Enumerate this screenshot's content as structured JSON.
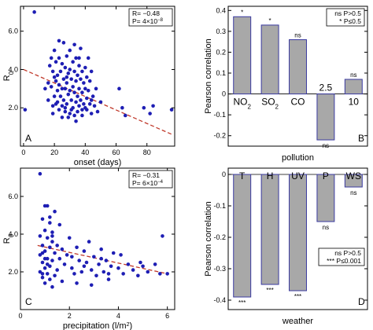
{
  "colors": {
    "point": "#1e1eb4",
    "trend": "#c0392b",
    "bar_fill": "#a8a8a8",
    "bar_stroke": "#3a3aa0"
  },
  "chart_data": [
    {
      "panel_label": "A",
      "type": "scatter",
      "xlabel": "onset (days)",
      "ylabel": "R0",
      "ylabel_main": "R",
      "ylabel_sub": "0",
      "xlim": [
        -2,
        98
      ],
      "ylim": [
        0,
        7.3
      ],
      "xticks": [
        "0",
        "20",
        "40",
        "60",
        "80"
      ],
      "xtick_values": [
        0,
        20,
        40,
        60,
        80
      ],
      "yticks": [
        "2.0",
        "4.0",
        "6.0"
      ],
      "ytick_values": [
        2,
        4,
        6
      ],
      "stats": {
        "r": "R= −0.48",
        "p_main": "P= 4×10",
        "p_exp": "−8"
      },
      "trend": {
        "x": [
          0,
          96
        ],
        "y": [
          4.0,
          0.62
        ]
      },
      "points": [
        [
          7,
          7.0
        ],
        [
          1,
          1.9
        ],
        [
          14,
          3.0
        ],
        [
          16,
          3.3
        ],
        [
          16,
          2.4
        ],
        [
          17,
          4.2
        ],
        [
          18,
          4.6
        ],
        [
          18,
          3.1
        ],
        [
          19,
          3.9
        ],
        [
          19,
          2.1
        ],
        [
          20,
          5.0
        ],
        [
          20,
          3.6
        ],
        [
          20,
          2.6
        ],
        [
          21,
          4.4
        ],
        [
          21,
          3.4
        ],
        [
          21,
          2.2
        ],
        [
          22,
          3.7
        ],
        [
          22,
          2.9
        ],
        [
          23,
          5.5
        ],
        [
          23,
          4.6
        ],
        [
          23,
          3.2
        ],
        [
          23,
          1.9
        ],
        [
          24,
          3.9
        ],
        [
          24,
          2.6
        ],
        [
          25,
          4.3
        ],
        [
          25,
          3.0
        ],
        [
          25,
          2.1
        ],
        [
          26,
          5.4
        ],
        [
          26,
          3.5
        ],
        [
          26,
          2.4
        ],
        [
          27,
          4.1
        ],
        [
          27,
          3.0
        ],
        [
          27,
          1.8
        ],
        [
          28,
          4.7
        ],
        [
          28,
          3.3
        ],
        [
          28,
          2.2
        ],
        [
          29,
          3.8
        ],
        [
          29,
          2.7
        ],
        [
          30,
          5.0
        ],
        [
          30,
          4.0
        ],
        [
          30,
          2.9
        ],
        [
          30,
          1.7
        ],
        [
          31,
          3.5
        ],
        [
          31,
          2.4
        ],
        [
          32,
          4.4
        ],
        [
          32,
          3.1
        ],
        [
          32,
          2.0
        ],
        [
          33,
          3.9
        ],
        [
          33,
          2.8
        ],
        [
          33,
          1.6
        ],
        [
          34,
          4.6
        ],
        [
          34,
          3.4
        ],
        [
          34,
          2.3
        ],
        [
          35,
          3.7
        ],
        [
          35,
          2.6
        ],
        [
          35,
          1.8
        ],
        [
          36,
          4.2
        ],
        [
          36,
          3.0
        ],
        [
          36,
          2.1
        ],
        [
          37,
          5.1
        ],
        [
          37,
          3.5
        ],
        [
          37,
          2.4
        ],
        [
          38,
          3.9
        ],
        [
          38,
          2.8
        ],
        [
          38,
          1.9
        ],
        [
          39,
          3.3
        ],
        [
          39,
          2.2
        ],
        [
          40,
          4.1
        ],
        [
          40,
          3.0
        ],
        [
          40,
          2.0
        ],
        [
          41,
          3.6
        ],
        [
          41,
          2.5
        ],
        [
          42,
          4.6
        ],
        [
          42,
          2.9
        ],
        [
          43,
          3.4
        ],
        [
          43,
          2.2
        ],
        [
          44,
          3.9
        ],
        [
          44,
          1.7
        ],
        [
          45,
          2.6
        ],
        [
          46,
          2.1
        ],
        [
          47,
          3.0
        ],
        [
          48,
          1.8
        ],
        [
          50,
          2.3
        ],
        [
          62,
          3.0
        ],
        [
          64,
          2.0
        ],
        [
          66,
          1.6
        ],
        [
          78,
          2.0
        ],
        [
          82,
          1.7
        ],
        [
          84,
          2.1
        ],
        [
          96,
          1.9
        ],
        [
          25,
          1.5
        ],
        [
          29,
          1.5
        ],
        [
          34,
          1.3
        ],
        [
          38,
          1.6
        ],
        [
          22,
          2.3
        ],
        [
          27,
          2.0
        ],
        [
          31,
          1.9
        ],
        [
          19,
          1.7
        ],
        [
          36,
          4.6
        ],
        [
          41,
          1.9
        ],
        [
          44,
          2.4
        ],
        [
          33,
          5.3
        ],
        [
          28,
          3.6
        ]
      ]
    },
    {
      "panel_label": "B",
      "type": "bar",
      "xlabel": "pollution",
      "ylabel": "Pearson correlation",
      "ylim": [
        -0.25,
        0.42
      ],
      "yticks": [
        "-0.2",
        "-0.1",
        "0",
        "0.1",
        "0.2",
        "0.3",
        "0.4"
      ],
      "ytick_values": [
        -0.2,
        -0.1,
        0,
        0.1,
        0.2,
        0.3,
        0.4
      ],
      "categories": [
        "NO2",
        "SO2",
        "CO",
        "2.5",
        "10"
      ],
      "category_main": [
        "NO",
        "SO",
        "CO",
        "2.5",
        "10"
      ],
      "category_sub": [
        "2",
        "2",
        "",
        "",
        ""
      ],
      "values": [
        0.37,
        0.33,
        0.26,
        -0.22,
        0.07
      ],
      "significance": [
        "*",
        "*",
        "ns",
        "ns",
        "ns"
      ],
      "legend": {
        "ns": "ns  P>0.5",
        "star": "*  P≤0.5"
      }
    },
    {
      "panel_label": "C",
      "type": "scatter",
      "xlabel": "precipitation (l/m2)",
      "xlabel_main": "precipitation (l/m",
      "xlabel_sup": "2",
      "xlabel_end": ")",
      "ylabel": "R0",
      "ylabel_main": "R",
      "ylabel_sub": "0",
      "xlim": [
        0,
        6.3
      ],
      "ylim": [
        0,
        7.5
      ],
      "xticks": [
        "0",
        "2",
        "4",
        "6"
      ],
      "xtick_values": [
        0,
        2,
        4,
        6
      ],
      "yticks": [
        "2.0",
        "4.0",
        "6.0"
      ],
      "ytick_values": [
        2,
        4,
        6
      ],
      "stats": {
        "r": "R= −0.31",
        "p_main": "P= 6×10",
        "p_exp": "−4"
      },
      "trend": {
        "x": [
          0.7,
          6.0
        ],
        "y": [
          3.4,
          1.9
        ]
      },
      "points": [
        [
          0.8,
          7.2
        ],
        [
          1.0,
          5.5
        ],
        [
          1.1,
          5.5
        ],
        [
          0.9,
          4.8
        ],
        [
          1.2,
          4.6
        ],
        [
          1.0,
          4.2
        ],
        [
          0.8,
          3.9
        ],
        [
          1.1,
          3.8
        ],
        [
          1.3,
          3.6
        ],
        [
          0.9,
          3.4
        ],
        [
          1.2,
          3.3
        ],
        [
          1.0,
          3.1
        ],
        [
          1.4,
          3.0
        ],
        [
          0.8,
          2.9
        ],
        [
          1.1,
          2.7
        ],
        [
          1.3,
          2.6
        ],
        [
          0.9,
          2.5
        ],
        [
          1.2,
          2.3
        ],
        [
          1.0,
          2.2
        ],
        [
          1.5,
          2.1
        ],
        [
          0.8,
          2.0
        ],
        [
          1.1,
          1.9
        ],
        [
          1.4,
          1.8
        ],
        [
          0.9,
          1.7
        ],
        [
          1.2,
          1.6
        ],
        [
          1.0,
          1.4
        ],
        [
          1.3,
          1.2
        ],
        [
          1.6,
          4.5
        ],
        [
          1.7,
          3.2
        ],
        [
          1.8,
          2.4
        ],
        [
          1.9,
          2.9
        ],
        [
          2.0,
          3.8
        ],
        [
          2.1,
          2.2
        ],
        [
          2.2,
          1.9
        ],
        [
          2.3,
          3.3
        ],
        [
          2.4,
          2.6
        ],
        [
          2.5,
          2.0
        ],
        [
          2.6,
          3.1
        ],
        [
          2.7,
          2.5
        ],
        [
          2.8,
          3.6
        ],
        [
          2.9,
          2.1
        ],
        [
          3.0,
          2.8
        ],
        [
          3.1,
          1.8
        ],
        [
          3.2,
          2.4
        ],
        [
          3.3,
          3.2
        ],
        [
          3.4,
          2.0
        ],
        [
          3.5,
          2.6
        ],
        [
          3.6,
          1.9
        ],
        [
          3.7,
          2.3
        ],
        [
          3.8,
          3.0
        ],
        [
          4.0,
          2.2
        ],
        [
          4.2,
          1.9
        ],
        [
          4.4,
          2.4
        ],
        [
          4.6,
          2.1
        ],
        [
          4.8,
          1.8
        ],
        [
          5.0,
          2.3
        ],
        [
          5.2,
          2.0
        ],
        [
          5.5,
          2.4
        ],
        [
          5.8,
          3.9
        ],
        [
          6.0,
          1.9
        ],
        [
          5.7,
          1.9
        ],
        [
          1.5,
          3.4
        ],
        [
          1.7,
          1.5
        ],
        [
          2.3,
          1.4
        ],
        [
          2.9,
          1.3
        ],
        [
          3.6,
          1.6
        ],
        [
          1.1,
          2.4
        ],
        [
          0.9,
          3.0
        ],
        [
          1.3,
          4.1
        ],
        [
          1.6,
          2.7
        ],
        [
          2.1,
          2.8
        ],
        [
          2.6,
          2.3
        ],
        [
          3.3,
          2.7
        ],
        [
          4.1,
          2.9
        ],
        [
          4.9,
          2.5
        ],
        [
          1.2,
          4.9
        ],
        [
          1.4,
          5.2
        ],
        [
          0.9,
          1.9
        ],
        [
          1.0,
          2.7
        ],
        [
          1.3,
          3.9
        ]
      ]
    },
    {
      "panel_label": "D",
      "type": "bar",
      "xlabel": "weather",
      "ylabel": "Pearson correlation",
      "ylim": [
        -0.43,
        0.02
      ],
      "yticks": [
        "-0.4",
        "-0.3",
        "-0.2",
        "-0.1",
        "0"
      ],
      "ytick_values": [
        -0.4,
        -0.3,
        -0.2,
        -0.1,
        0
      ],
      "categories": [
        "T",
        "H",
        "UV",
        "P",
        "WS"
      ],
      "values": [
        -0.39,
        -0.35,
        -0.37,
        -0.15,
        -0.04
      ],
      "significance": [
        "***",
        "***",
        "***",
        "ns",
        "ns"
      ],
      "legend": {
        "ns": "ns  P>0.5",
        "star": "***  P≤0.001"
      }
    }
  ]
}
